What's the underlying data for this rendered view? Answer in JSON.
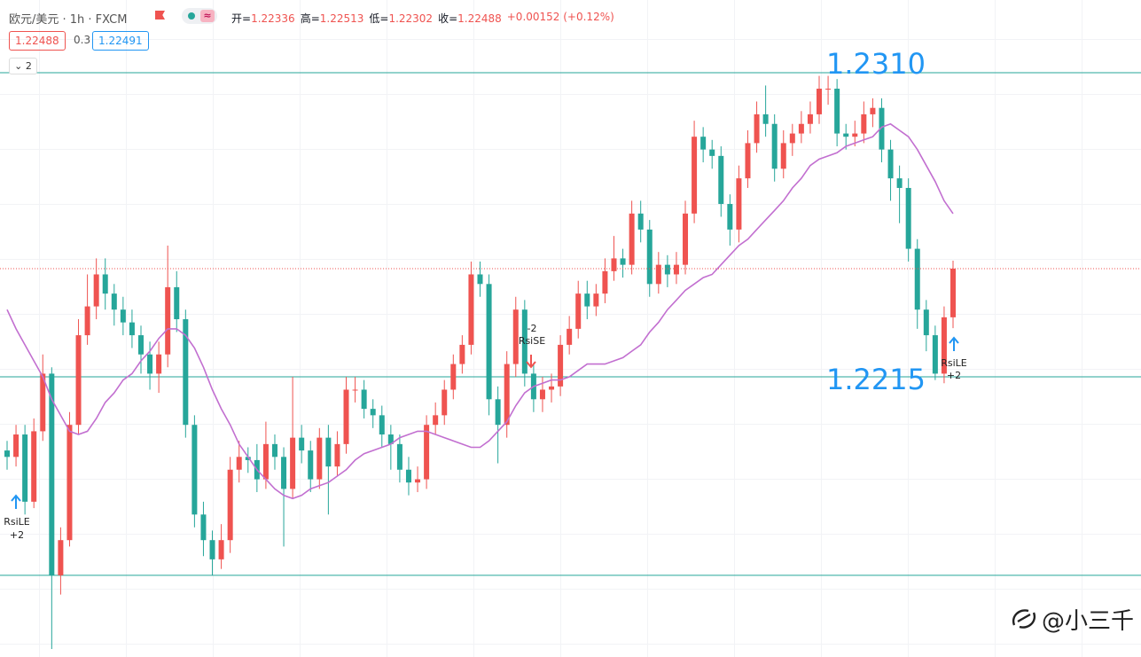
{
  "header": {
    "symbol": "欧元/美元 · 1h · FXCM",
    "ohlc": [
      {
        "label": "开=",
        "value": "1.22336"
      },
      {
        "label": "高=",
        "value": "1.22513"
      },
      {
        "label": "低=",
        "value": "1.22302"
      },
      {
        "label": "收=",
        "value": "1.22488"
      }
    ],
    "change": "+0.00152 (+0.12%)",
    "bid": "1.22488",
    "spread": "0.3",
    "ask": "1.22491",
    "indicator_count": "2",
    "watermark": "@小三千"
  },
  "chart_data": {
    "type": "candlestick",
    "up_color": "#ef5350",
    "down_color": "#26a69a",
    "ylim": [
      1.21275,
      1.23327
    ],
    "open": [
      1.2192,
      1.219,
      1.2197,
      1.2176,
      1.2198,
      1.2216,
      1.2153,
      1.2164,
      1.22,
      1.2228,
      1.2237,
      1.2247,
      1.2241,
      1.2236,
      1.2232,
      1.2228,
      1.2222,
      1.2216,
      1.2222,
      1.2243,
      1.2233,
      1.22,
      1.2172,
      1.2164,
      1.2158,
      1.2164,
      1.2186,
      1.219,
      1.2189,
      1.2183,
      1.2194,
      1.219,
      1.218,
      1.2196,
      1.2192,
      1.2183,
      1.2196,
      1.2187,
      1.2194,
      1.2211,
      1.2211,
      1.2205,
      1.2203,
      1.2197,
      1.2194,
      1.2186,
      1.2182,
      1.2183,
      1.22,
      1.2203,
      1.2211,
      1.2219,
      1.2225,
      1.2247,
      1.2244,
      1.2208,
      1.22,
      1.2219,
      1.2236,
      1.2216,
      1.2208,
      1.2211,
      1.2212,
      1.2225,
      1.223,
      1.2241,
      1.2237,
      1.2241,
      1.2248,
      1.2252,
      1.225,
      1.2266,
      1.2261,
      1.2244,
      1.225,
      1.2247,
      1.225,
      1.2266,
      1.229,
      1.2286,
      1.2284,
      1.2269,
      1.2261,
      1.2277,
      1.2288,
      1.2297,
      1.2294,
      1.228,
      1.2288,
      1.2291,
      1.2294,
      1.2297,
      1.2305,
      1.2305,
      1.2291,
      1.229,
      1.2291,
      1.2297,
      1.2299,
      1.2286,
      1.2277,
      1.2274,
      1.2255,
      1.2236,
      1.2228,
      1.2216,
      1.22336
    ],
    "high": [
      1.2195,
      1.22,
      1.22,
      1.2202,
      1.2222,
      1.2218,
      1.2168,
      1.2204,
      1.2233,
      1.2247,
      1.2252,
      1.2252,
      1.2244,
      1.224,
      1.2236,
      1.2231,
      1.2226,
      1.2226,
      1.2256,
      1.2248,
      1.2236,
      1.2203,
      1.2176,
      1.2167,
      1.2169,
      1.219,
      1.2195,
      1.2193,
      1.2194,
      1.2201,
      1.2197,
      1.2193,
      1.2215,
      1.22,
      1.2195,
      1.2199,
      1.22,
      1.2198,
      1.2215,
      1.2215,
      1.2214,
      1.2208,
      1.2206,
      1.22,
      1.2197,
      1.219,
      1.2187,
      1.2203,
      1.2207,
      1.2214,
      1.2222,
      1.2228,
      1.2251,
      1.2251,
      1.2247,
      1.2212,
      1.2223,
      1.224,
      1.2239,
      1.2219,
      1.2215,
      1.2216,
      1.2228,
      1.2234,
      1.2245,
      1.2245,
      1.2244,
      1.2252,
      1.2259,
      1.2255,
      1.227,
      1.227,
      1.2264,
      1.2254,
      1.2253,
      1.2254,
      1.227,
      1.2295,
      1.2293,
      1.2289,
      1.2287,
      1.2272,
      1.2281,
      1.2292,
      1.2301,
      1.2306,
      1.2297,
      1.2292,
      1.2294,
      1.2298,
      1.2301,
      1.2309,
      1.2309,
      1.2308,
      1.2294,
      1.2295,
      1.2301,
      1.2302,
      1.2302,
      1.2289,
      1.2281,
      1.2277,
      1.2258,
      1.2239,
      1.2231,
      1.2237,
      1.22513
    ],
    "low": [
      1.2186,
      1.2187,
      1.2172,
      1.2174,
      1.2195,
      1.213,
      1.2147,
      1.2162,
      1.2197,
      1.2225,
      1.2233,
      1.2236,
      1.2231,
      1.2228,
      1.2224,
      1.2216,
      1.2211,
      1.221,
      1.2218,
      1.2229,
      1.2196,
      1.2168,
      1.2159,
      1.2153,
      1.2155,
      1.216,
      1.2182,
      1.2185,
      1.2179,
      1.218,
      1.2186,
      1.2162,
      1.2177,
      1.2188,
      1.2179,
      1.218,
      1.2172,
      1.2184,
      1.2191,
      1.2207,
      1.2202,
      1.2199,
      1.2193,
      1.2186,
      1.2182,
      1.2178,
      1.2179,
      1.218,
      1.2197,
      1.22,
      1.2208,
      1.2216,
      1.2222,
      1.224,
      1.2203,
      1.2188,
      1.2196,
      1.2215,
      1.2212,
      1.2204,
      1.2204,
      1.2207,
      1.2209,
      1.2222,
      1.2227,
      1.2233,
      1.2234,
      1.2238,
      1.2245,
      1.2246,
      1.2247,
      1.2257,
      1.224,
      1.2241,
      1.2243,
      1.2244,
      1.2247,
      1.2263,
      1.2282,
      1.228,
      1.2265,
      1.2256,
      1.2257,
      1.2274,
      1.2285,
      1.229,
      1.2276,
      1.2277,
      1.2284,
      1.2288,
      1.2291,
      1.2294,
      1.23,
      1.2287,
      1.2286,
      1.2287,
      1.2288,
      1.2293,
      1.2282,
      1.227,
      1.2263,
      1.2251,
      1.223,
      1.2223,
      1.2214,
      1.2213,
      1.22302
    ],
    "close": [
      1.219,
      1.2197,
      1.2176,
      1.2198,
      1.2216,
      1.2153,
      1.2164,
      1.22,
      1.2228,
      1.2237,
      1.2247,
      1.2241,
      1.2236,
      1.2232,
      1.2228,
      1.2222,
      1.2216,
      1.2222,
      1.2243,
      1.2233,
      1.22,
      1.2172,
      1.2164,
      1.2158,
      1.2164,
      1.2186,
      1.219,
      1.2189,
      1.2183,
      1.2194,
      1.219,
      1.218,
      1.2196,
      1.2192,
      1.2183,
      1.2196,
      1.2187,
      1.2194,
      1.2211,
      1.2211,
      1.2205,
      1.2203,
      1.2197,
      1.2194,
      1.2186,
      1.2182,
      1.2183,
      1.22,
      1.2203,
      1.2211,
      1.2219,
      1.2225,
      1.2247,
      1.2244,
      1.2208,
      1.22,
      1.2219,
      1.2236,
      1.2216,
      1.2208,
      1.2211,
      1.2212,
      1.2225,
      1.223,
      1.2241,
      1.2237,
      1.2241,
      1.2248,
      1.2252,
      1.225,
      1.2266,
      1.2261,
      1.2244,
      1.225,
      1.2247,
      1.225,
      1.2266,
      1.229,
      1.2286,
      1.2284,
      1.2269,
      1.2261,
      1.2277,
      1.2288,
      1.2297,
      1.2294,
      1.228,
      1.2288,
      1.2291,
      1.2294,
      1.2297,
      1.2305,
      1.2305,
      1.2291,
      1.229,
      1.2291,
      1.2297,
      1.2299,
      1.2286,
      1.2277,
      1.2274,
      1.2255,
      1.2236,
      1.2228,
      1.2216,
      1.22336,
      1.22488
    ],
    "ma": {
      "color": "#c26fd0",
      "values": [
        1.2236,
        1.223,
        1.2225,
        1.222,
        1.2215,
        1.2208,
        1.2203,
        1.2198,
        1.2197,
        1.2198,
        1.2202,
        1.2207,
        1.221,
        1.2214,
        1.2216,
        1.222,
        1.2223,
        1.2227,
        1.223,
        1.223,
        1.2228,
        1.2224,
        1.2218,
        1.2211,
        1.2205,
        1.22,
        1.2194,
        1.219,
        1.2186,
        1.2183,
        1.218,
        1.2178,
        1.2177,
        1.2178,
        1.218,
        1.2181,
        1.2182,
        1.2184,
        1.2186,
        1.2189,
        1.2191,
        1.2192,
        1.2193,
        1.2194,
        1.2196,
        1.2197,
        1.2198,
        1.2198,
        1.2197,
        1.2196,
        1.2195,
        1.2194,
        1.2193,
        1.2193,
        1.2195,
        1.2198,
        1.2201,
        1.2206,
        1.221,
        1.2212,
        1.2213,
        1.2214,
        1.2214,
        1.2215,
        1.2217,
        1.2219,
        1.2219,
        1.2219,
        1.222,
        1.2221,
        1.2223,
        1.2225,
        1.2229,
        1.2232,
        1.2236,
        1.2239,
        1.2242,
        1.2244,
        1.2246,
        1.2247,
        1.225,
        1.2253,
        1.2256,
        1.2258,
        1.2261,
        1.2264,
        1.2267,
        1.227,
        1.2274,
        1.2277,
        1.2281,
        1.2283,
        1.2284,
        1.2285,
        1.2287,
        1.2288,
        1.2289,
        1.229,
        1.2293,
        1.2294,
        1.2292,
        1.229,
        1.2286,
        1.2281,
        1.2276,
        1.227,
        1.2266
      ]
    },
    "levels": [
      {
        "value": 1.231,
        "label": "1.2310"
      },
      {
        "value": 1.2215,
        "label": "1.2215"
      },
      1.2153
    ],
    "level_color": "#26a69a",
    "last_price_color": "#ef5350",
    "annotations": {
      "long_1": [
        "RsiLE",
        "+2"
      ],
      "short": [
        "RsiSE",
        "-2"
      ],
      "long_2": [
        "RsiLE",
        "+2"
      ]
    }
  }
}
